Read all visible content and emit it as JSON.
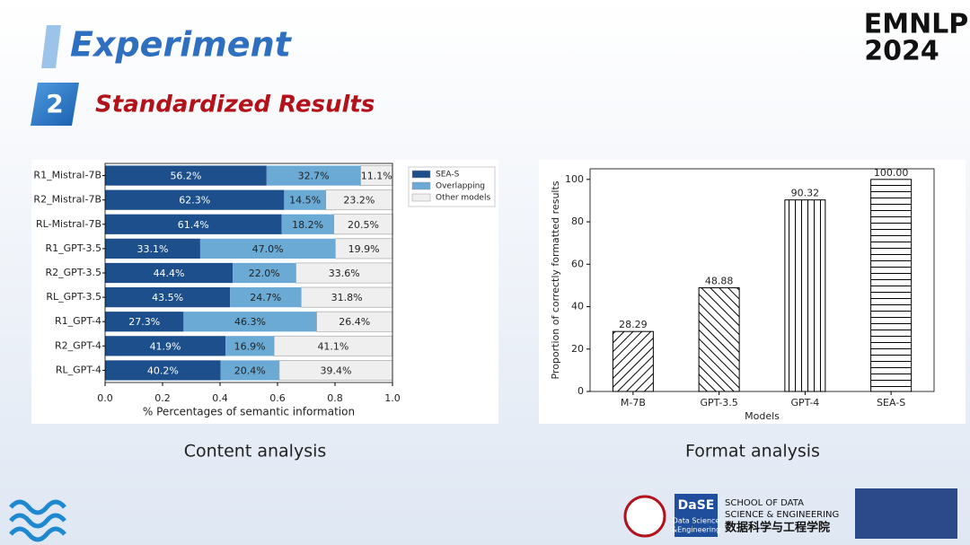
{
  "slide": {
    "title": "Experiment",
    "section_number": "2",
    "subtitle": "Standardized Results",
    "captions": [
      "Content analysis",
      "Format analysis"
    ],
    "conference": [
      "EMNLP",
      "2024"
    ],
    "logos": {
      "dase": "DaSE",
      "dase_sub": [
        "Data Science",
        "&Engineering"
      ],
      "school": [
        "SCHOOL OF DATA",
        "SCIENCE & ENGINEERING"
      ],
      "school_cn": "数据科学与工程学院"
    }
  },
  "chart_data": [
    {
      "type": "hbar_stacked",
      "orientation": "horizontal",
      "categories": [
        "R1_Mistral-7B",
        "R2_Mistral-7B",
        "RL-Mistral-7B",
        "R1_GPT-3.5",
        "R2_GPT-3.5",
        "RL_GPT-3.5",
        "R1_GPT-4",
        "R2_GPT-4",
        "RL_GPT-4"
      ],
      "series": [
        {
          "name": "SEA-S",
          "color": "#1c4f8c",
          "values": [
            0.562,
            0.623,
            0.614,
            0.331,
            0.444,
            0.435,
            0.273,
            0.419,
            0.402
          ],
          "value_labels": [
            "56.2%",
            "62.3%",
            "61.4%",
            "33.1%",
            "44.4%",
            "43.5%",
            "27.3%",
            "41.9%",
            "40.2%"
          ]
        },
        {
          "name": "Overlapping",
          "color": "#6aaad4",
          "values": [
            0.327,
            0.145,
            0.182,
            0.47,
            0.22,
            0.247,
            0.463,
            0.169,
            0.204
          ],
          "value_labels": [
            "32.7%",
            "14.5%",
            "18.2%",
            "47.0%",
            "22.0%",
            "24.7%",
            "46.3%",
            "16.9%",
            "20.4%"
          ]
        },
        {
          "name": "Other models",
          "color": "#efefef",
          "values": [
            0.111,
            0.232,
            0.205,
            0.199,
            0.336,
            0.318,
            0.264,
            0.411,
            0.394
          ],
          "value_labels": [
            "11.1%",
            "23.2%",
            "20.5%",
            "19.9%",
            "33.6%",
            "31.8%",
            "26.4%",
            "41.1%",
            "39.4%"
          ]
        }
      ],
      "xlabel": "% Percentages of semantic information",
      "xlim": [
        0,
        1
      ],
      "xticks": [
        {
          "value": 0,
          "label": "0.0"
        },
        0.2,
        0.4,
        0.6,
        0.8,
        {
          "value": 1,
          "label": "1.0"
        }
      ],
      "legend": "upper right",
      "grid": false
    },
    {
      "type": "bar",
      "categories": [
        "M-7B",
        "GPT-3.5",
        "GPT-4",
        "SEA-S"
      ],
      "values": [
        28.29,
        48.88,
        90.32,
        100
      ],
      "value_labels": [
        "28.29",
        "48.88",
        "90.32",
        "100.00"
      ],
      "hatches": [
        "/",
        "\\",
        "|",
        "-"
      ],
      "color": "#ffffff",
      "xlabel": "Models",
      "ylabel": "Proportion of correctly formatted results",
      "ylim": [
        0,
        105
      ],
      "yticks": [
        0,
        20,
        40,
        60,
        80,
        100
      ],
      "grid": false
    }
  ]
}
